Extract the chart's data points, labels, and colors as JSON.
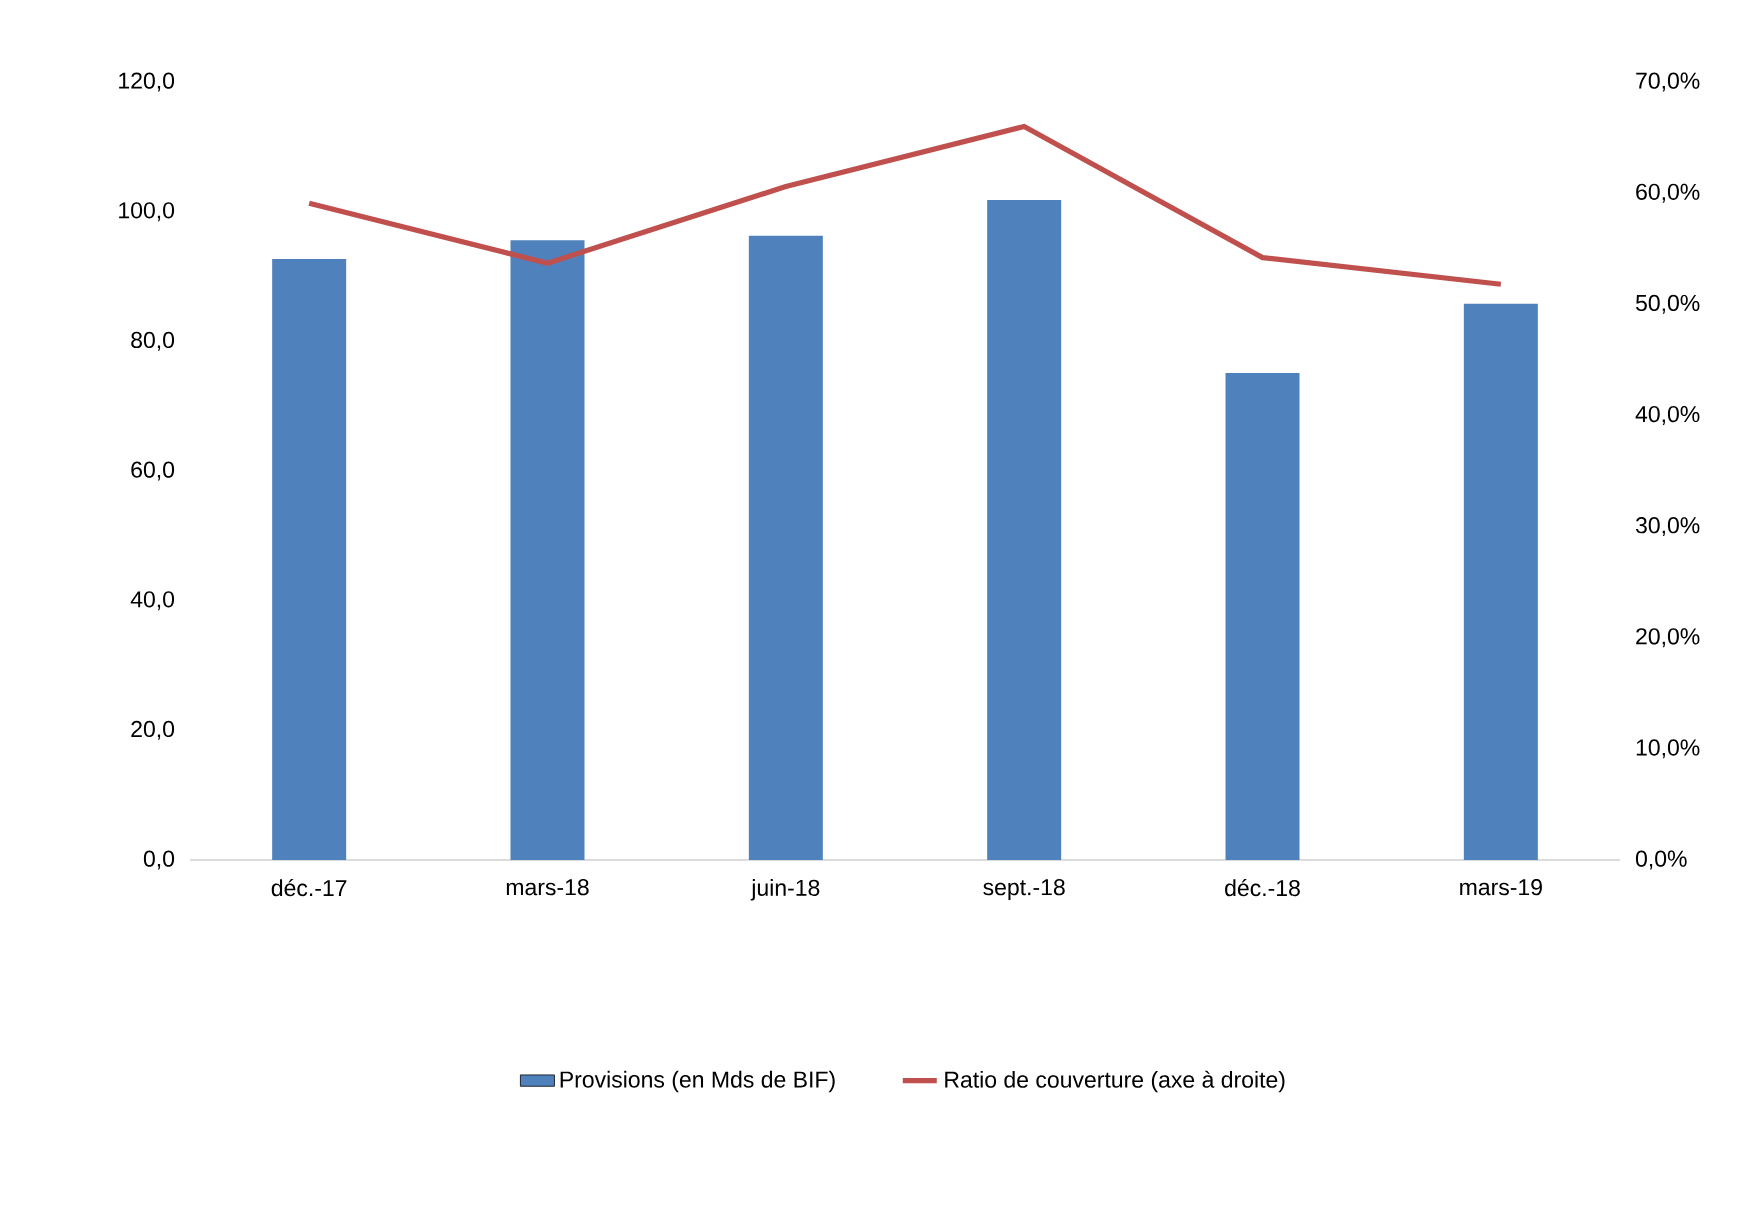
{
  "chart_data": {
    "type": "bar",
    "categories": [
      "déc.-17",
      "mars-18",
      "juin-18",
      "sept.-18",
      "déc.-18",
      "mars-19"
    ],
    "series": [
      {
        "name": "Provisions (en Mds de BIF)",
        "color": "#4f81bd",
        "values": [
          92.7,
          95.6,
          96.3,
          101.8,
          75.1,
          85.8
        ]
      },
      {
        "name": "Ratio de couverture (axe à droite)",
        "type": "line",
        "axis": "y2",
        "color": "#c0504d",
        "values": [
          59.1,
          53.7,
          60.6,
          66.0,
          54.2,
          51.8
        ]
      }
    ],
    "ylim": [
      0,
      120
    ],
    "yticks": [
      {
        "value": 0,
        "label": "0,0"
      },
      {
        "value": 20,
        "label": "20,0"
      },
      {
        "value": 40,
        "label": "40,0"
      },
      {
        "value": 60,
        "label": "60,0"
      },
      {
        "value": 80,
        "label": "80,0"
      },
      {
        "value": 100,
        "label": "100,0"
      },
      {
        "value": 120,
        "label": "120,0"
      }
    ],
    "y2lim": [
      0,
      70
    ],
    "y2ticks": [
      {
        "value": 0,
        "label": "0,0%"
      },
      {
        "value": 10,
        "label": "10,0%"
      },
      {
        "value": 20,
        "label": "20,0%"
      },
      {
        "value": 30,
        "label": "30,0%"
      },
      {
        "value": 40,
        "label": "40,0%"
      },
      {
        "value": 50,
        "label": "50,0%"
      },
      {
        "value": 60,
        "label": "60,0%"
      },
      {
        "value": 70,
        "label": "70,0%"
      }
    ],
    "legend": "bottom",
    "grid": false,
    "marker": "none"
  }
}
